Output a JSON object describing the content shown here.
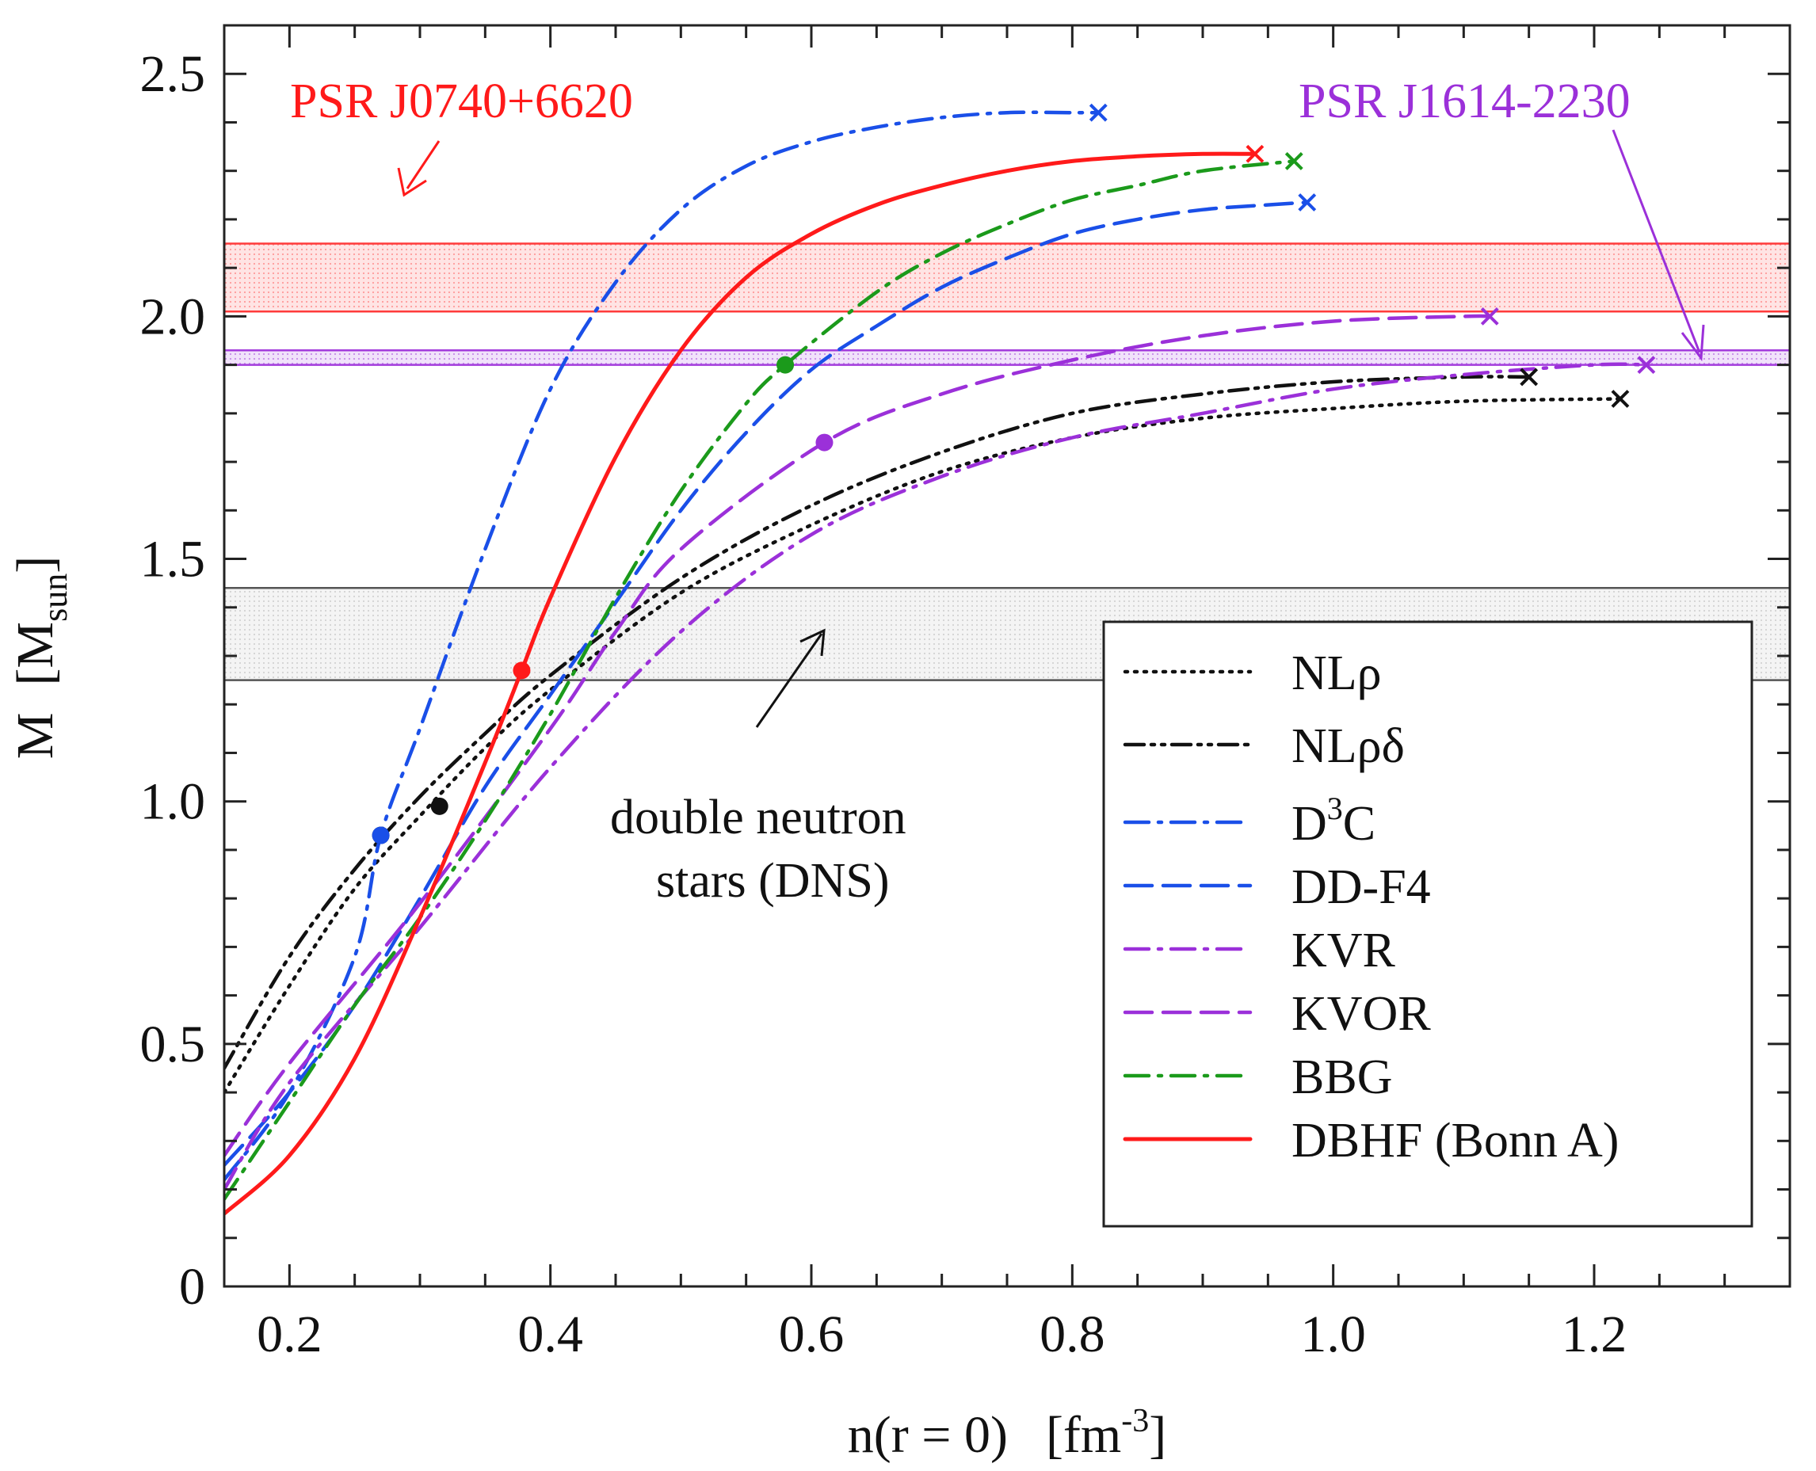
{
  "chart_data": {
    "type": "line",
    "xlabel": {
      "main": "n(r = 0)",
      "unit_open": "[fm",
      "unit_sup": "-3",
      "unit_close": "]"
    },
    "ylabel": {
      "main": "M",
      "unit_open": "[M",
      "unit_sub": "sun",
      "unit_close": "]"
    },
    "xlim": [
      0.15,
      1.35
    ],
    "ylim": [
      0,
      2.6
    ],
    "xticks": [
      0.2,
      0.4,
      0.6,
      0.8,
      1.0,
      1.2
    ],
    "xtick_labels": [
      "0.2",
      "0.4",
      "0.6",
      "0.8",
      "1.0",
      "1.2"
    ],
    "yticks": [
      0,
      0.5,
      1.0,
      1.5,
      2.0,
      2.5
    ],
    "ytick_labels": [
      "0",
      "0.5",
      "1.0",
      "1.5",
      "2.0",
      "2.5"
    ],
    "bands": [
      {
        "name": "PSR J0740+6620",
        "y": [
          2.01,
          2.15
        ],
        "color": "#ff3b3b"
      },
      {
        "name": "PSR J1614-2230",
        "y": [
          1.9,
          1.93
        ],
        "color": "#a33cdc"
      },
      {
        "name": "double neutron stars (DNS)",
        "y": [
          1.25,
          1.44
        ],
        "color": "#555555"
      }
    ],
    "annotations": [
      {
        "text": "PSR J0740+6620",
        "color": "#ff1a1a"
      },
      {
        "text": "PSR J1614-2230",
        "color": "#9b30d9"
      },
      {
        "lines": [
          "double neutron",
          "stars (DNS)"
        ],
        "color": "#111111"
      }
    ],
    "series": [
      {
        "name": "NLρ",
        "color": "#111111",
        "dash": "dot",
        "x": [
          0.15,
          0.2,
          0.25,
          0.3,
          0.35,
          0.4,
          0.5,
          0.6,
          0.7,
          0.8,
          0.9,
          1.0,
          1.1,
          1.22
        ],
        "y": [
          0.4,
          0.62,
          0.82,
          0.97,
          1.11,
          1.23,
          1.43,
          1.57,
          1.68,
          1.75,
          1.79,
          1.81,
          1.825,
          1.83
        ],
        "dot": [
          0.315,
          0.99
        ],
        "end": [
          1.22,
          1.83
        ]
      },
      {
        "name": "NLρδ",
        "color": "#111111",
        "dash": "dashdotdot",
        "x": [
          0.15,
          0.2,
          0.25,
          0.3,
          0.35,
          0.4,
          0.5,
          0.6,
          0.7,
          0.8,
          0.9,
          1.0,
          1.1,
          1.15
        ],
        "y": [
          0.45,
          0.68,
          0.86,
          1.01,
          1.14,
          1.26,
          1.46,
          1.61,
          1.72,
          1.8,
          1.84,
          1.865,
          1.875,
          1.875
        ],
        "dot": [
          0.27,
          0.93
        ],
        "end": [
          1.15,
          1.875
        ]
      },
      {
        "name": "D3C",
        "label": "D",
        "sup": "3",
        "suffix": "C",
        "color": "#1a4fe8",
        "dash": "dashdot",
        "x": [
          0.15,
          0.2,
          0.25,
          0.27,
          0.3,
          0.35,
          0.4,
          0.45,
          0.5,
          0.55,
          0.6,
          0.65,
          0.7,
          0.75,
          0.8,
          0.82
        ],
        "y": [
          0.22,
          0.4,
          0.68,
          0.93,
          1.15,
          1.52,
          1.85,
          2.07,
          2.22,
          2.31,
          2.36,
          2.39,
          2.41,
          2.42,
          2.42,
          2.42
        ],
        "dot": [
          0.27,
          0.93
        ],
        "end": [
          0.82,
          2.42
        ]
      },
      {
        "name": "DD-F4",
        "color": "#1a4fe8",
        "dash": "dash",
        "x": [
          0.15,
          0.2,
          0.25,
          0.3,
          0.35,
          0.4,
          0.45,
          0.5,
          0.55,
          0.6,
          0.65,
          0.7,
          0.75,
          0.8,
          0.85,
          0.9,
          0.95,
          0.98
        ],
        "y": [
          0.25,
          0.4,
          0.58,
          0.8,
          1.03,
          1.22,
          1.41,
          1.6,
          1.76,
          1.89,
          1.98,
          2.06,
          2.12,
          2.17,
          2.2,
          2.22,
          2.23,
          2.235
        ],
        "dot": null,
        "end": [
          0.98,
          2.235
        ]
      },
      {
        "name": "KVR",
        "color": "#9b30d9",
        "dash": "dashdot",
        "x": [
          0.15,
          0.2,
          0.3,
          0.4,
          0.5,
          0.6,
          0.7,
          0.8,
          0.9,
          1.0,
          1.1,
          1.2,
          1.24
        ],
        "y": [
          0.2,
          0.42,
          0.74,
          1.07,
          1.35,
          1.55,
          1.67,
          1.75,
          1.8,
          1.85,
          1.88,
          1.9,
          1.9
        ],
        "dot": null,
        "end": [
          1.24,
          1.9
        ]
      },
      {
        "name": "KVOR",
        "color": "#9b30d9",
        "dash": "dash",
        "x": [
          0.15,
          0.2,
          0.3,
          0.4,
          0.45,
          0.5,
          0.61,
          0.7,
          0.8,
          0.9,
          1.0,
          1.1,
          1.12
        ],
        "y": [
          0.27,
          0.46,
          0.79,
          1.15,
          1.35,
          1.52,
          1.74,
          1.84,
          1.91,
          1.96,
          1.99,
          2.0,
          2.0
        ],
        "dot": [
          0.61,
          1.74
        ],
        "end": [
          1.12,
          2.0
        ]
      },
      {
        "name": "BBG",
        "color": "#1b9a1b",
        "dash": "dashdot",
        "x": [
          0.15,
          0.2,
          0.25,
          0.3,
          0.35,
          0.4,
          0.45,
          0.5,
          0.55,
          0.58,
          0.65,
          0.7,
          0.75,
          0.8,
          0.85,
          0.9,
          0.97
        ],
        "y": [
          0.18,
          0.38,
          0.58,
          0.76,
          0.96,
          1.18,
          1.42,
          1.64,
          1.82,
          1.9,
          2.05,
          2.13,
          2.19,
          2.24,
          2.27,
          2.3,
          2.32
        ],
        "dot": [
          0.58,
          1.9
        ],
        "end": [
          0.97,
          2.32
        ]
      },
      {
        "name": "DBHF (Bonn A)",
        "color": "#ff1a1a",
        "dash": "solid",
        "x": [
          0.15,
          0.2,
          0.25,
          0.3,
          0.35,
          0.378,
          0.4,
          0.45,
          0.5,
          0.55,
          0.6,
          0.65,
          0.7,
          0.75,
          0.8,
          0.85,
          0.9,
          0.94
        ],
        "y": [
          0.15,
          0.27,
          0.47,
          0.76,
          1.08,
          1.27,
          1.42,
          1.71,
          1.93,
          2.08,
          2.17,
          2.23,
          2.27,
          2.3,
          2.32,
          2.33,
          2.335,
          2.335
        ],
        "dot": [
          0.378,
          1.27
        ],
        "end": [
          0.94,
          2.335
        ]
      }
    ]
  }
}
